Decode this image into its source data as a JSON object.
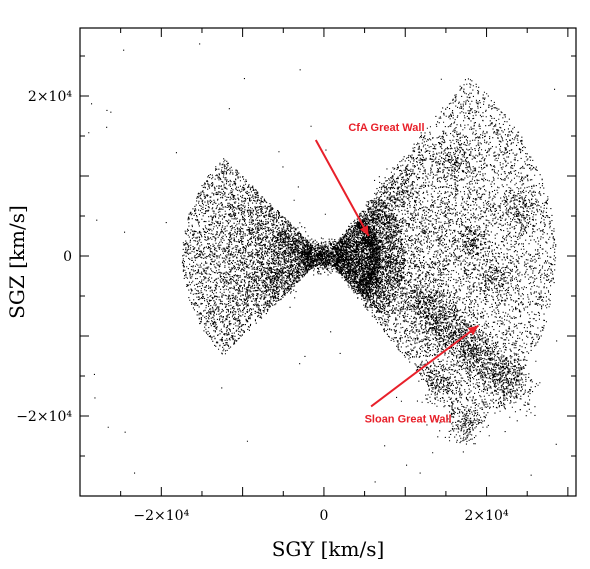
{
  "chart_data": {
    "type": "scatter",
    "xlabel": "SGY [km/s]",
    "ylabel": "SGZ [km/s]",
    "xlim": [
      -30000,
      31000
    ],
    "ylim": [
      -30000,
      28500
    ],
    "x_ticks": [
      {
        "value": -20000,
        "label": "−2×10⁴"
      },
      {
        "value": 0,
        "label": "0"
      },
      {
        "value": 20000,
        "label": "2×10⁴"
      }
    ],
    "y_ticks": [
      {
        "value": 20000,
        "label": "2×10⁴"
      },
      {
        "value": 0,
        "label": "0"
      },
      {
        "value": -20000,
        "label": "−2×10⁴"
      }
    ],
    "annotations": [
      {
        "text": "CfA Great Wall",
        "text_at": [
          3000,
          15600
        ],
        "arrow_from": [
          -1000,
          14500
        ],
        "arrow_to": [
          5500,
          2500
        ],
        "color": "#e8202a"
      },
      {
        "text": "Sloan Great Wall",
        "text_at": [
          5000,
          -20800
        ],
        "arrow_from": [
          5800,
          -18800
        ],
        "arrow_to": [
          19000,
          -8700
        ],
        "color": "#e8202a"
      }
    ],
    "grid": false,
    "legend": "none",
    "point_color": "#000000",
    "arrow_color": "#e8202a"
  }
}
